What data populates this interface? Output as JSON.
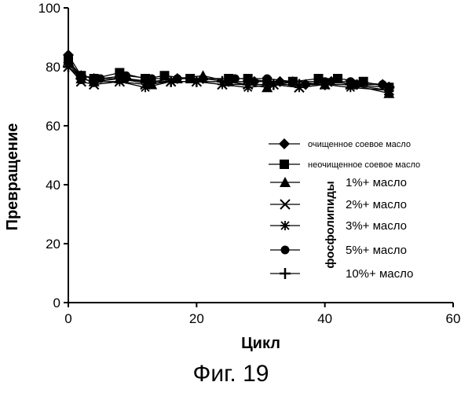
{
  "figure_caption": "Фиг. 19",
  "chart_data": {
    "type": "line",
    "xlabel": "Цикл",
    "ylabel": "Превращение",
    "xlim": [
      0,
      60
    ],
    "ylim": [
      0,
      100
    ],
    "x_ticks": [
      0,
      20,
      40,
      60
    ],
    "y_ticks": [
      0,
      20,
      40,
      60,
      80,
      100
    ],
    "grid": false,
    "legend_position": "right",
    "legend_group_label": "фосфолипиды",
    "series": [
      {
        "name": "очищенное соевое масло",
        "marker": "diamond",
        "x": [
          0,
          2,
          4,
          9,
          13,
          17,
          21,
          25,
          29,
          33,
          37,
          41,
          45,
          49
        ],
        "y": [
          84,
          77,
          76,
          76,
          75,
          76,
          76,
          75,
          75,
          75,
          74,
          75,
          74,
          74
        ]
      },
      {
        "name": "неочищенное соевое масло",
        "marker": "square",
        "x": [
          0,
          2,
          4,
          8,
          12,
          15,
          19,
          25,
          28,
          31,
          35,
          39,
          42,
          46,
          50
        ],
        "y": [
          82,
          77,
          76,
          78,
          76,
          77,
          76,
          76,
          76,
          75,
          75,
          76,
          76,
          75,
          73
        ]
      },
      {
        "name": "1%+ масло",
        "marker": "triangle",
        "x": [
          0,
          2,
          4,
          8,
          13,
          17,
          21,
          25,
          31,
          35,
          40,
          44,
          50
        ],
        "y": [
          82,
          76,
          75,
          76,
          74,
          76,
          77,
          75,
          73,
          75,
          74,
          74,
          71
        ]
      },
      {
        "name": "2%+ масло",
        "marker": "x",
        "x": [
          0,
          2,
          4,
          8,
          12,
          16,
          20,
          24,
          28,
          32,
          36,
          40,
          44,
          50
        ],
        "y": [
          80,
          75,
          74,
          75,
          74,
          75,
          75,
          74,
          74,
          74,
          73,
          74,
          74,
          72
        ]
      },
      {
        "name": "3%+ масло",
        "marker": "asterisk",
        "x": [
          0,
          2,
          4,
          8,
          12,
          16,
          20,
          24,
          28,
          32,
          36,
          40,
          44,
          50
        ],
        "y": [
          81,
          76,
          75,
          75,
          73,
          75,
          75,
          74,
          73,
          74,
          73,
          74,
          73,
          72
        ]
      },
      {
        "name": "5%+ масло",
        "marker": "circle",
        "x": [
          0,
          2,
          5,
          9,
          13,
          17,
          21,
          26,
          31,
          35,
          40,
          44,
          49
        ],
        "y": [
          82,
          77,
          76,
          77,
          76,
          76,
          76,
          76,
          76,
          75,
          75,
          75,
          74
        ]
      },
      {
        "name": "10%+ масло",
        "marker": "plus",
        "x": [
          0,
          2,
          4,
          8,
          12,
          16,
          20,
          24,
          28,
          32,
          36,
          40,
          44,
          50
        ],
        "y": [
          80,
          76,
          75,
          76,
          75,
          75,
          75,
          75,
          74,
          74,
          74,
          74,
          74,
          73
        ]
      }
    ]
  }
}
